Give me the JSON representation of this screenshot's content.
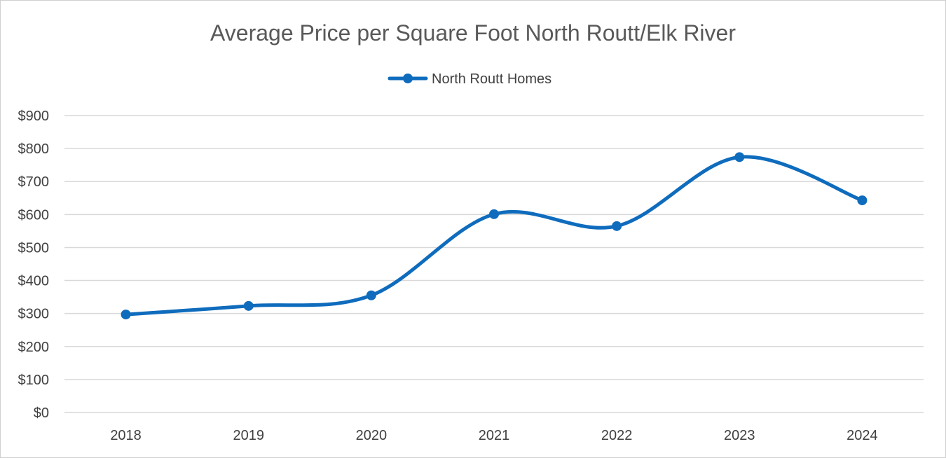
{
  "chart_data": {
    "type": "line",
    "title": "Average Price per Square Foot North Routt/Elk River",
    "xlabel": "",
    "ylabel": "",
    "categories": [
      "2018",
      "2019",
      "2020",
      "2021",
      "2022",
      "2023",
      "2024"
    ],
    "series": [
      {
        "name": "North Routt Homes",
        "values": [
          297,
          323,
          355,
          601,
          565,
          774,
          643
        ],
        "color": "#0f6cbd",
        "smooth": true,
        "markers": true
      }
    ],
    "ylim": [
      0,
      900
    ],
    "yticks": [
      0,
      100,
      200,
      300,
      400,
      500,
      600,
      700,
      800,
      900
    ],
    "ytick_labels": [
      "$0",
      "$100",
      "$200",
      "$300",
      "$400",
      "$500",
      "$600",
      "$700",
      "$800",
      "$900"
    ],
    "grid": true,
    "legend_position": "top"
  }
}
